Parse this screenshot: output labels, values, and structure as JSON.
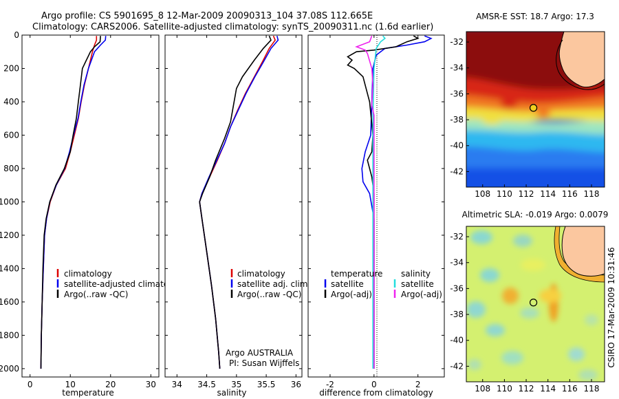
{
  "title_line1": "Argo profile: CS 5901695_8 12-Mar-2009 20090313_104 37.08S 112.665E",
  "title_line2": "Climatology: CARS2006. Satellite-adjusted climatology: synTS_20090311.nc (1.6d earlier)",
  "side_caption": "CSIRO 17-Mar-2009 10:31:46",
  "colors": {
    "climatology": "#dd0000",
    "satellite": "#0000ee",
    "argo": "#000000",
    "sat_sal": "#22dddd",
    "argo_sal": "#ee22ee"
  },
  "chart_data": [
    {
      "type": "line",
      "xlabel": "temperature",
      "xlim": [
        -2,
        32
      ],
      "ylim": [
        2050,
        0
      ],
      "xticks": [
        0,
        10,
        20,
        30
      ],
      "yticks": [
        0,
        200,
        400,
        600,
        800,
        1000,
        1200,
        1400,
        1600,
        1800,
        2000
      ],
      "legend": [
        "climatology",
        "satellite-adjusted climatology",
        "Argo(..raw -QC)"
      ],
      "series": [
        {
          "name": "climatology",
          "color": "#dd0000",
          "points": [
            [
              16.5,
              5
            ],
            [
              16.5,
              30
            ],
            [
              16,
              60
            ],
            [
              15.5,
              100
            ],
            [
              14.5,
              200
            ],
            [
              13.5,
              300
            ],
            [
              12.7,
              400
            ],
            [
              12,
              500
            ],
            [
              11,
              600
            ],
            [
              10,
              700
            ],
            [
              8.8,
              800
            ],
            [
              6.5,
              900
            ],
            [
              5,
              1000
            ],
            [
              4.1,
              1100
            ],
            [
              3.6,
              1200
            ],
            [
              3.3,
              1400
            ],
            [
              3.0,
              1600
            ],
            [
              2.8,
              1800
            ],
            [
              2.7,
              2000
            ]
          ]
        },
        {
          "name": "satellite-adjusted climatology",
          "color": "#0000ee",
          "points": [
            [
              18.8,
              5
            ],
            [
              18.7,
              30
            ],
            [
              17.5,
              60
            ],
            [
              16,
              100
            ],
            [
              14.5,
              200
            ],
            [
              13.4,
              300
            ],
            [
              12.6,
              400
            ],
            [
              11.9,
              500
            ],
            [
              10.8,
              600
            ],
            [
              9.8,
              700
            ],
            [
              8.6,
              800
            ],
            [
              6.5,
              900
            ],
            [
              4.9,
              1000
            ],
            [
              4.1,
              1100
            ],
            [
              3.6,
              1200
            ],
            [
              3.3,
              1400
            ],
            [
              3.0,
              1600
            ],
            [
              2.8,
              1800
            ],
            [
              2.7,
              2000
            ]
          ]
        },
        {
          "name": "Argo(..raw -QC)",
          "color": "#000000",
          "points": [
            [
              17.5,
              5
            ],
            [
              17.4,
              40
            ],
            [
              16,
              70
            ],
            [
              15,
              100
            ],
            [
              14,
              150
            ],
            [
              13,
              200
            ],
            [
              12.5,
              300
            ],
            [
              12,
              400
            ],
            [
              11.5,
              500
            ],
            [
              10.7,
              600
            ],
            [
              10,
              700
            ],
            [
              8.5,
              800
            ],
            [
              6.4,
              900
            ],
            [
              4.9,
              1000
            ],
            [
              4,
              1100
            ],
            [
              3.5,
              1200
            ],
            [
              3.2,
              1400
            ],
            [
              3.0,
              1600
            ],
            [
              2.8,
              1800
            ],
            [
              2.7,
              2000
            ]
          ]
        }
      ]
    },
    {
      "type": "line",
      "xlabel": "salinity",
      "xlim": [
        33.8,
        36.1
      ],
      "ylim": [
        2050,
        0
      ],
      "xticks": [
        34,
        34.5,
        35,
        35.5,
        36
      ],
      "yticks": [
        0,
        200,
        400,
        600,
        800,
        1000,
        1200,
        1400,
        1600,
        1800,
        2000
      ],
      "legend": [
        "climatology",
        "satellite adj. clim.",
        "Argo(..raw -QC)"
      ],
      "annotation": [
        "Argo AUSTRALIA",
        "PI: Susan Wijffels"
      ],
      "series": [
        {
          "name": "climatology",
          "color": "#dd0000",
          "points": [
            [
              35.62,
              5
            ],
            [
              35.65,
              30
            ],
            [
              35.55,
              80
            ],
            [
              35.45,
              150
            ],
            [
              35.3,
              250
            ],
            [
              35.15,
              350
            ],
            [
              35.02,
              450
            ],
            [
              34.9,
              550
            ],
            [
              34.8,
              650
            ],
            [
              34.68,
              750
            ],
            [
              34.55,
              850
            ],
            [
              34.42,
              950
            ],
            [
              34.38,
              1000
            ],
            [
              34.42,
              1100
            ],
            [
              34.5,
              1300
            ],
            [
              34.58,
              1500
            ],
            [
              34.65,
              1700
            ],
            [
              34.7,
              1900
            ],
            [
              34.72,
              2000
            ]
          ]
        },
        {
          "name": "satellite adj. clim.",
          "color": "#0000ee",
          "points": [
            [
              35.68,
              5
            ],
            [
              35.7,
              30
            ],
            [
              35.58,
              80
            ],
            [
              35.47,
              150
            ],
            [
              35.31,
              250
            ],
            [
              35.16,
              350
            ],
            [
              35.03,
              450
            ],
            [
              34.9,
              550
            ],
            [
              34.8,
              650
            ],
            [
              34.67,
              750
            ],
            [
              34.54,
              850
            ],
            [
              34.42,
              950
            ],
            [
              34.38,
              1000
            ],
            [
              34.42,
              1100
            ],
            [
              34.5,
              1300
            ],
            [
              34.58,
              1500
            ],
            [
              34.65,
              1700
            ],
            [
              34.7,
              1900
            ],
            [
              34.72,
              2000
            ]
          ]
        },
        {
          "name": "Argo(..raw -QC)",
          "color": "#000000",
          "points": [
            [
              35.55,
              5
            ],
            [
              35.58,
              30
            ],
            [
              35.45,
              80
            ],
            [
              35.3,
              150
            ],
            [
              35.1,
              250
            ],
            [
              35.0,
              320
            ],
            [
              34.95,
              420
            ],
            [
              34.9,
              520
            ],
            [
              34.8,
              620
            ],
            [
              34.65,
              750
            ],
            [
              34.55,
              850
            ],
            [
              34.43,
              950
            ],
            [
              34.38,
              1000
            ],
            [
              34.42,
              1100
            ],
            [
              34.5,
              1300
            ],
            [
              34.58,
              1500
            ],
            [
              34.65,
              1700
            ],
            [
              34.7,
              1900
            ],
            [
              34.72,
              2000
            ]
          ]
        }
      ]
    },
    {
      "type": "line",
      "xlabel": "difference from climatology",
      "xlim": [
        -3,
        3.2
      ],
      "ylim": [
        2050,
        0
      ],
      "xticks": [
        -2,
        0,
        2
      ],
      "yticks": [
        0,
        200,
        400,
        600,
        800,
        1000,
        1200,
        1400,
        1600,
        1800,
        2000
      ],
      "legend_temperature": [
        "temperature",
        "satellite",
        "Argo(-adj)"
      ],
      "legend_salinity": [
        "salinity",
        "satellite",
        "Argo(-adj)"
      ],
      "series": [
        {
          "name": "temperature satellite",
          "color": "#0000ee",
          "points": [
            [
              2.3,
              5
            ],
            [
              2.6,
              20
            ],
            [
              2.3,
              40
            ],
            [
              1.5,
              60
            ],
            [
              0.5,
              80
            ],
            [
              0.1,
              120
            ],
            [
              -0.05,
              200
            ],
            [
              -0.1,
              400
            ],
            [
              -0.15,
              600
            ],
            [
              -0.4,
              700
            ],
            [
              -0.55,
              800
            ],
            [
              -0.5,
              880
            ],
            [
              -0.2,
              950
            ],
            [
              0,
              1100
            ],
            [
              0,
              1400
            ],
            [
              0,
              2000
            ]
          ]
        },
        {
          "name": "temperature Argo(-adj)",
          "color": "#000000",
          "points": [
            [
              1.8,
              5
            ],
            [
              2.0,
              20
            ],
            [
              1.5,
              40
            ],
            [
              1.0,
              70
            ],
            [
              0,
              90
            ],
            [
              -0.8,
              100
            ],
            [
              -1.2,
              130
            ],
            [
              -1.0,
              150
            ],
            [
              -1.2,
              180
            ],
            [
              -0.9,
              200
            ],
            [
              -0.5,
              250
            ],
            [
              -0.2,
              400
            ],
            [
              -0.05,
              600
            ],
            [
              -0.1,
              700
            ],
            [
              -0.3,
              750
            ],
            [
              -0.1,
              850
            ],
            [
              0,
              950
            ],
            [
              0,
              2000
            ]
          ]
        },
        {
          "name": "salinity satellite",
          "color": "#22dddd",
          "points": [
            [
              0.4,
              5
            ],
            [
              0.5,
              20
            ],
            [
              0.3,
              40
            ],
            [
              0.1,
              80
            ],
            [
              0,
              200
            ],
            [
              -0.05,
              500
            ],
            [
              -0.05,
              1000
            ],
            [
              -0.05,
              2000
            ]
          ]
        },
        {
          "name": "salinity Argo(-adj)",
          "color": "#ee22ee",
          "points": [
            [
              -0.1,
              5
            ],
            [
              -0.2,
              40
            ],
            [
              -0.8,
              70
            ],
            [
              -0.4,
              90
            ],
            [
              -0.3,
              110
            ],
            [
              -0.1,
              200
            ],
            [
              -0.05,
              300
            ],
            [
              -0.1,
              420
            ],
            [
              0,
              480
            ],
            [
              0,
              700
            ],
            [
              0,
              1000
            ],
            [
              0,
              2000
            ]
          ]
        }
      ]
    }
  ],
  "maps": [
    {
      "title": "AMSR-E SST: 18.7  Argo: 17.3",
      "xlim": [
        106.5,
        119.2
      ],
      "ylim": [
        -43.2,
        -31.2
      ],
      "xticks": [
        108,
        110,
        112,
        114,
        116,
        118
      ],
      "yticks": [
        -32,
        -34,
        -36,
        -38,
        -40,
        -42
      ],
      "profile_location": [
        112.665,
        -37.08
      ]
    },
    {
      "title": "Altimetric SLA: -0.019  Argo: 0.0079",
      "xlim": [
        106.5,
        119.2
      ],
      "ylim": [
        -43.2,
        -31.2
      ],
      "xticks": [
        108,
        110,
        112,
        114,
        116,
        118
      ],
      "yticks": [
        -32,
        -34,
        -36,
        -38,
        -40,
        -42
      ],
      "profile_location": [
        112.665,
        -37.08
      ]
    }
  ]
}
